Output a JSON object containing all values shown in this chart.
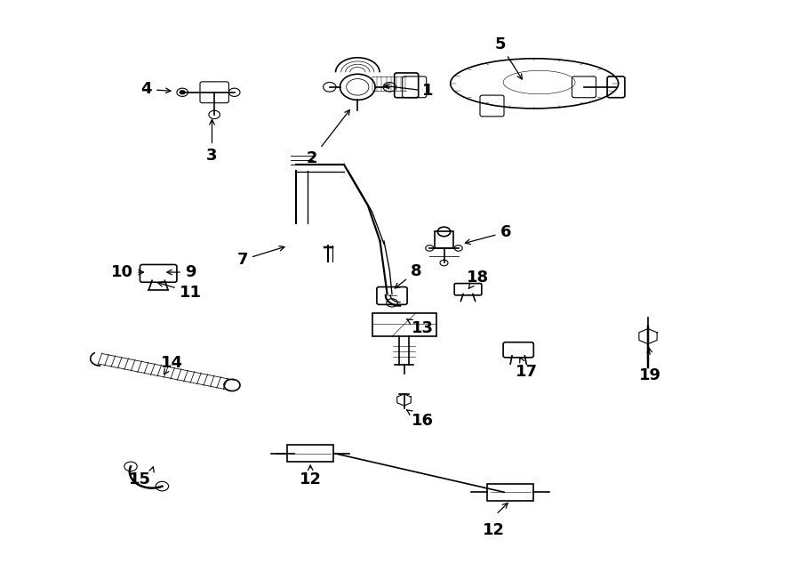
{
  "bg_color": "#ffffff",
  "line_color": "#000000",
  "fig_width": 9.0,
  "fig_height": 6.61,
  "dpi": 100,
  "label_fontsize": 13,
  "lw_main": 1.2,
  "lw_thin": 0.8
}
